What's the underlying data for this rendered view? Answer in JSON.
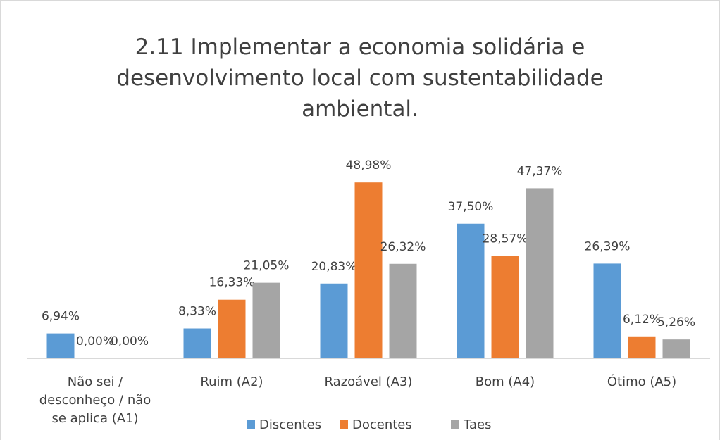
{
  "chart_data": {
    "type": "bar",
    "title": "2.11 Implementar a economia solidária e desenvolvimento local com sustentabilidade ambiental.",
    "categories": [
      "Não sei / desconheço / não se aplica (A1)",
      "Ruim (A2)",
      "Razoável (A3)",
      "Bom (A4)",
      "Ótimo (A5)"
    ],
    "series": [
      {
        "name": "Discentes",
        "color": "#5b9bd5",
        "values": [
          6.94,
          8.33,
          20.83,
          37.5,
          26.39
        ],
        "value_labels": [
          "6,94%",
          "8,33%",
          "20,83%",
          "37,50%",
          "26,39%"
        ]
      },
      {
        "name": "Docentes",
        "color": "#ed7d31",
        "values": [
          0,
          16.33,
          48.98,
          28.57,
          6.12
        ],
        "value_labels": [
          "0,00%",
          "16,33%",
          "48,98%",
          "28,57%",
          "6,12%"
        ]
      },
      {
        "name": "Taes",
        "color": "#a5a5a5",
        "values": [
          0,
          21.05,
          26.32,
          47.37,
          5.26
        ],
        "value_labels": [
          "0,00%",
          "21,05%",
          "26,32%",
          "47,37%",
          "5,26%"
        ]
      }
    ],
    "legend": "bottom"
  }
}
